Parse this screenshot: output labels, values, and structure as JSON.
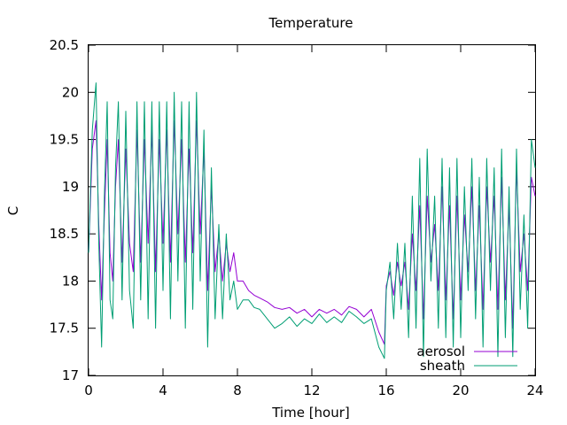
{
  "chart_data": {
    "type": "line",
    "title": "Temperature",
    "xlabel": "Time [hour]",
    "ylabel": "C",
    "xlim": [
      0,
      24
    ],
    "ylim": [
      17,
      20.5
    ],
    "x_ticks": [
      0,
      4,
      8,
      12,
      16,
      20,
      24
    ],
    "y_ticks": [
      17,
      17.5,
      18,
      18.5,
      19,
      19.5,
      20,
      20.5
    ],
    "y_tick_labels": [
      "17",
      "17.5",
      "18",
      "18.5",
      "19",
      "19.5",
      "20",
      "20.5"
    ],
    "grid": false,
    "legend_position": "bottom-right",
    "series": [
      {
        "name": "aerosol",
        "color": "#9400d3",
        "x": [
          0,
          0.2,
          0.4,
          0.55,
          0.7,
          0.85,
          1.0,
          1.15,
          1.3,
          1.45,
          1.6,
          1.8,
          2.0,
          2.2,
          2.4,
          2.6,
          2.8,
          3.0,
          3.2,
          3.4,
          3.6,
          3.8,
          4.0,
          4.2,
          4.4,
          4.6,
          4.8,
          5.0,
          5.2,
          5.4,
          5.6,
          5.8,
          6.0,
          6.2,
          6.4,
          6.6,
          6.8,
          7.0,
          7.2,
          7.4,
          7.6,
          7.8,
          8.0,
          8.3,
          8.6,
          8.9,
          9.2,
          9.6,
          10.0,
          10.4,
          10.8,
          11.2,
          11.6,
          12.0,
          12.4,
          12.8,
          13.2,
          13.6,
          14.0,
          14.4,
          14.8,
          15.2,
          15.6,
          15.9,
          16.0,
          16.2,
          16.4,
          16.6,
          16.8,
          17.0,
          17.2,
          17.4,
          17.6,
          17.8,
          18.0,
          18.2,
          18.4,
          18.6,
          18.8,
          19.0,
          19.2,
          19.4,
          19.6,
          19.8,
          20.0,
          20.2,
          20.4,
          20.6,
          20.8,
          21.0,
          21.2,
          21.4,
          21.6,
          21.8,
          22.0,
          22.2,
          22.4,
          22.6,
          22.8,
          23.0,
          23.2,
          23.4,
          23.6,
          23.8,
          24.0
        ],
        "y": [
          18.3,
          19.4,
          19.7,
          18.6,
          17.8,
          18.7,
          19.5,
          18.3,
          18.0,
          19.0,
          19.5,
          18.2,
          19.4,
          18.4,
          18.1,
          19.6,
          18.2,
          19.5,
          18.4,
          19.6,
          18.1,
          19.5,
          18.4,
          19.6,
          18.2,
          19.7,
          18.5,
          19.5,
          18.2,
          19.4,
          18.3,
          19.7,
          18.5,
          19.4,
          17.9,
          19.0,
          18.1,
          18.5,
          18.0,
          18.4,
          18.1,
          18.3,
          18.0,
          18.0,
          17.9,
          17.85,
          17.82,
          17.78,
          17.72,
          17.7,
          17.72,
          17.66,
          17.7,
          17.62,
          17.7,
          17.66,
          17.7,
          17.64,
          17.73,
          17.7,
          17.62,
          17.7,
          17.46,
          17.33,
          17.95,
          18.1,
          17.85,
          18.2,
          17.95,
          18.2,
          17.7,
          18.5,
          17.9,
          18.8,
          17.6,
          18.9,
          18.2,
          18.6,
          17.9,
          19.0,
          17.8,
          18.8,
          17.6,
          18.9,
          17.8,
          18.7,
          18.1,
          19.0,
          17.9,
          18.8,
          17.7,
          19.0,
          18.2,
          18.9,
          17.7,
          19.1,
          17.8,
          18.8,
          17.5,
          19.2,
          18.1,
          18.5,
          17.9,
          19.1,
          18.9
        ]
      },
      {
        "name": "sheath",
        "color": "#009e73",
        "x": [
          0,
          0.2,
          0.4,
          0.55,
          0.7,
          0.85,
          1.0,
          1.15,
          1.3,
          1.45,
          1.6,
          1.8,
          2.0,
          2.2,
          2.4,
          2.6,
          2.8,
          3.0,
          3.2,
          3.4,
          3.6,
          3.8,
          4.0,
          4.2,
          4.4,
          4.6,
          4.8,
          5.0,
          5.2,
          5.4,
          5.6,
          5.8,
          6.0,
          6.2,
          6.4,
          6.6,
          6.8,
          7.0,
          7.2,
          7.4,
          7.6,
          7.8,
          8.0,
          8.3,
          8.6,
          8.9,
          9.2,
          9.6,
          10.0,
          10.4,
          10.8,
          11.2,
          11.6,
          12.0,
          12.4,
          12.8,
          13.2,
          13.6,
          14.0,
          14.4,
          14.8,
          15.2,
          15.6,
          15.9,
          16.0,
          16.2,
          16.4,
          16.6,
          16.8,
          17.0,
          17.2,
          17.4,
          17.6,
          17.8,
          18.0,
          18.2,
          18.4,
          18.6,
          18.8,
          19.0,
          19.2,
          19.4,
          19.6,
          19.8,
          20.0,
          20.2,
          20.4,
          20.6,
          20.8,
          21.0,
          21.2,
          21.4,
          21.6,
          21.8,
          22.0,
          22.2,
          22.4,
          22.6,
          22.8,
          23.0,
          23.2,
          23.4,
          23.6,
          23.8,
          24.0
        ],
        "y": [
          18.3,
          19.6,
          20.1,
          18.4,
          17.3,
          18.9,
          19.9,
          17.8,
          17.6,
          19.2,
          19.9,
          17.8,
          19.8,
          17.9,
          17.5,
          19.9,
          17.8,
          19.9,
          17.6,
          19.9,
          17.5,
          19.9,
          17.9,
          19.9,
          17.6,
          20.0,
          18.0,
          19.9,
          17.5,
          19.9,
          17.7,
          20.0,
          18.0,
          19.6,
          17.3,
          19.2,
          17.6,
          18.6,
          17.6,
          18.5,
          17.8,
          18.0,
          17.7,
          17.8,
          17.8,
          17.72,
          17.7,
          17.6,
          17.5,
          17.55,
          17.62,
          17.52,
          17.6,
          17.55,
          17.65,
          17.56,
          17.62,
          17.56,
          17.68,
          17.62,
          17.55,
          17.6,
          17.3,
          17.18,
          17.9,
          18.2,
          17.6,
          18.4,
          17.7,
          18.4,
          17.4,
          18.9,
          17.5,
          19.3,
          17.2,
          19.4,
          18.0,
          18.9,
          17.5,
          19.3,
          17.4,
          19.2,
          17.3,
          19.3,
          17.4,
          19.0,
          17.9,
          19.3,
          17.6,
          19.1,
          17.3,
          19.3,
          17.9,
          19.2,
          17.2,
          19.4,
          17.4,
          19.0,
          17.2,
          19.4,
          17.7,
          18.7,
          17.5,
          19.5,
          19.2
        ]
      }
    ]
  }
}
